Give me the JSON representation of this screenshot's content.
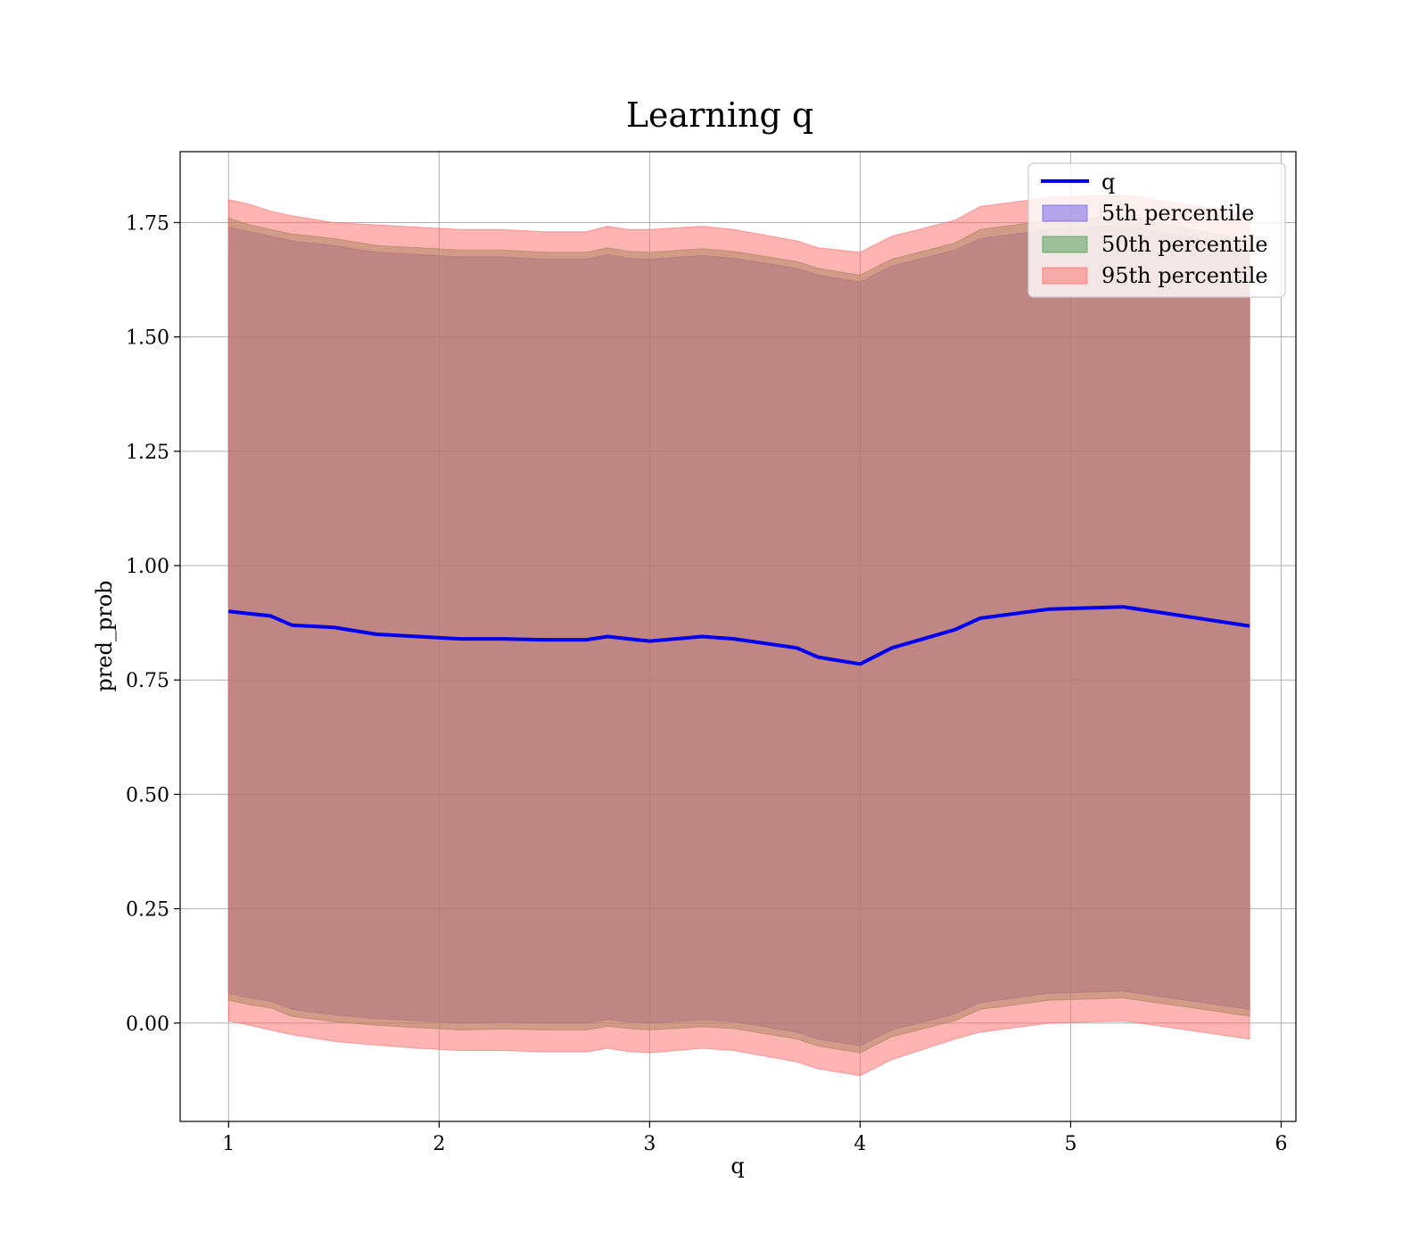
{
  "chart_data": {
    "type": "area",
    "title": "Learning q",
    "xlabel": "q",
    "ylabel": "pred_prob",
    "xlim": [
      0.77,
      6.07
    ],
    "ylim": [
      -0.215,
      1.905
    ],
    "xticks": [
      1,
      2,
      3,
      4,
      5,
      6
    ],
    "xtick_labels": [
      "1",
      "2",
      "3",
      "4",
      "5",
      "6"
    ],
    "yticks": [
      0.0,
      0.25,
      0.5,
      0.75,
      1.0,
      1.25,
      1.5,
      1.75
    ],
    "ytick_labels": [
      "0.00",
      "0.25",
      "0.50",
      "0.75",
      "1.00",
      "1.25",
      "1.50",
      "1.75"
    ],
    "grid": true,
    "legend_position": "top-right",
    "x": [
      1.0,
      1.1,
      1.2,
      1.3,
      1.5,
      1.7,
      1.9,
      2.1,
      2.3,
      2.5,
      2.7,
      2.8,
      2.9,
      3.0,
      3.25,
      3.4,
      3.7,
      3.8,
      4.0,
      4.15,
      4.45,
      4.57,
      4.9,
      5.25,
      5.85
    ],
    "series": [
      {
        "name": "q",
        "kind": "line",
        "color": "#0000ee",
        "values": [
          0.9,
          0.895,
          0.89,
          0.87,
          0.865,
          0.85,
          0.845,
          0.84,
          0.84,
          0.838,
          0.838,
          0.845,
          0.84,
          0.835,
          0.845,
          0.84,
          0.82,
          0.8,
          0.785,
          0.82,
          0.86,
          0.885,
          0.905,
          0.91,
          0.868
        ]
      },
      {
        "name": "5th percentile",
        "kind": "band",
        "color": "#6a5ae6",
        "lower": [
          0.065,
          0.055,
          0.048,
          0.03,
          0.018,
          0.01,
          0.005,
          0.0,
          0.002,
          0.0,
          0.0,
          0.008,
          0.003,
          0.0,
          0.007,
          0.003,
          -0.02,
          -0.035,
          -0.05,
          -0.015,
          0.02,
          0.045,
          0.065,
          0.07,
          0.03
        ],
        "upper": [
          1.74,
          1.73,
          1.72,
          1.71,
          1.7,
          1.685,
          1.68,
          1.675,
          1.675,
          1.67,
          1.67,
          1.68,
          1.672,
          1.67,
          1.678,
          1.672,
          1.65,
          1.635,
          1.62,
          1.655,
          1.69,
          1.715,
          1.735,
          1.745,
          1.69
        ]
      },
      {
        "name": "50th percentile",
        "kind": "band",
        "color": "#4a9a4a",
        "lower": [
          0.05,
          0.04,
          0.033,
          0.015,
          0.003,
          -0.005,
          -0.01,
          -0.015,
          -0.013,
          -0.015,
          -0.015,
          -0.007,
          -0.012,
          -0.015,
          -0.008,
          -0.012,
          -0.035,
          -0.05,
          -0.065,
          -0.03,
          0.005,
          0.03,
          0.05,
          0.055,
          0.015
        ],
        "upper": [
          1.76,
          1.745,
          1.735,
          1.725,
          1.715,
          1.7,
          1.695,
          1.69,
          1.69,
          1.685,
          1.685,
          1.695,
          1.687,
          1.685,
          1.693,
          1.687,
          1.665,
          1.65,
          1.635,
          1.67,
          1.705,
          1.735,
          1.755,
          1.765,
          1.71
        ]
      },
      {
        "name": "95th percentile",
        "kind": "band",
        "color": "#ff6a6a",
        "lower": [
          0.005,
          -0.005,
          -0.015,
          -0.025,
          -0.04,
          -0.048,
          -0.055,
          -0.06,
          -0.06,
          -0.063,
          -0.063,
          -0.055,
          -0.062,
          -0.065,
          -0.055,
          -0.06,
          -0.085,
          -0.1,
          -0.115,
          -0.08,
          -0.035,
          -0.02,
          0.0,
          0.005,
          -0.035
        ],
        "upper": [
          1.8,
          1.79,
          1.775,
          1.765,
          1.75,
          1.745,
          1.74,
          1.735,
          1.735,
          1.73,
          1.73,
          1.742,
          1.735,
          1.735,
          1.742,
          1.735,
          1.71,
          1.695,
          1.685,
          1.72,
          1.755,
          1.785,
          1.805,
          1.81,
          1.77
        ]
      }
    ]
  }
}
